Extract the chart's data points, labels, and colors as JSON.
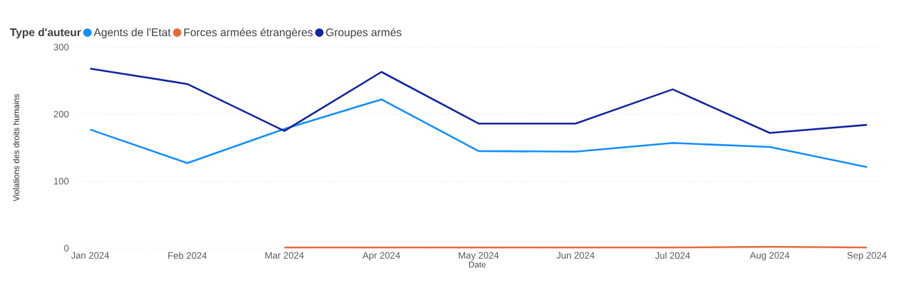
{
  "chart_data": {
    "type": "line",
    "xlabel": "Date",
    "ylabel": "Violations des droits humains",
    "legend_title": "Type d'auteur",
    "categories": [
      "Jan 2024",
      "Feb 2024",
      "Mar 2024",
      "Apr 2024",
      "May 2024",
      "Jun 2024",
      "Jul 2024",
      "Aug 2024",
      "Sep 2024"
    ],
    "series": [
      {
        "name": "Agents de l'Etat",
        "color": "#118dff",
        "values": [
          177,
          127,
          178,
          222,
          145,
          144,
          157,
          151,
          121
        ]
      },
      {
        "name": "Forces armées étrangères",
        "color": "#e66c37",
        "values": [
          null,
          null,
          1,
          1,
          1,
          1,
          1,
          2,
          1
        ]
      },
      {
        "name": "Groupes armés",
        "color": "#12239e",
        "values": [
          268,
          245,
          175,
          263,
          186,
          186,
          237,
          172,
          184
        ]
      }
    ],
    "ylim": [
      0,
      300
    ],
    "yticks": [
      0,
      100,
      200,
      300
    ],
    "grid": "y",
    "legend": "top left"
  }
}
